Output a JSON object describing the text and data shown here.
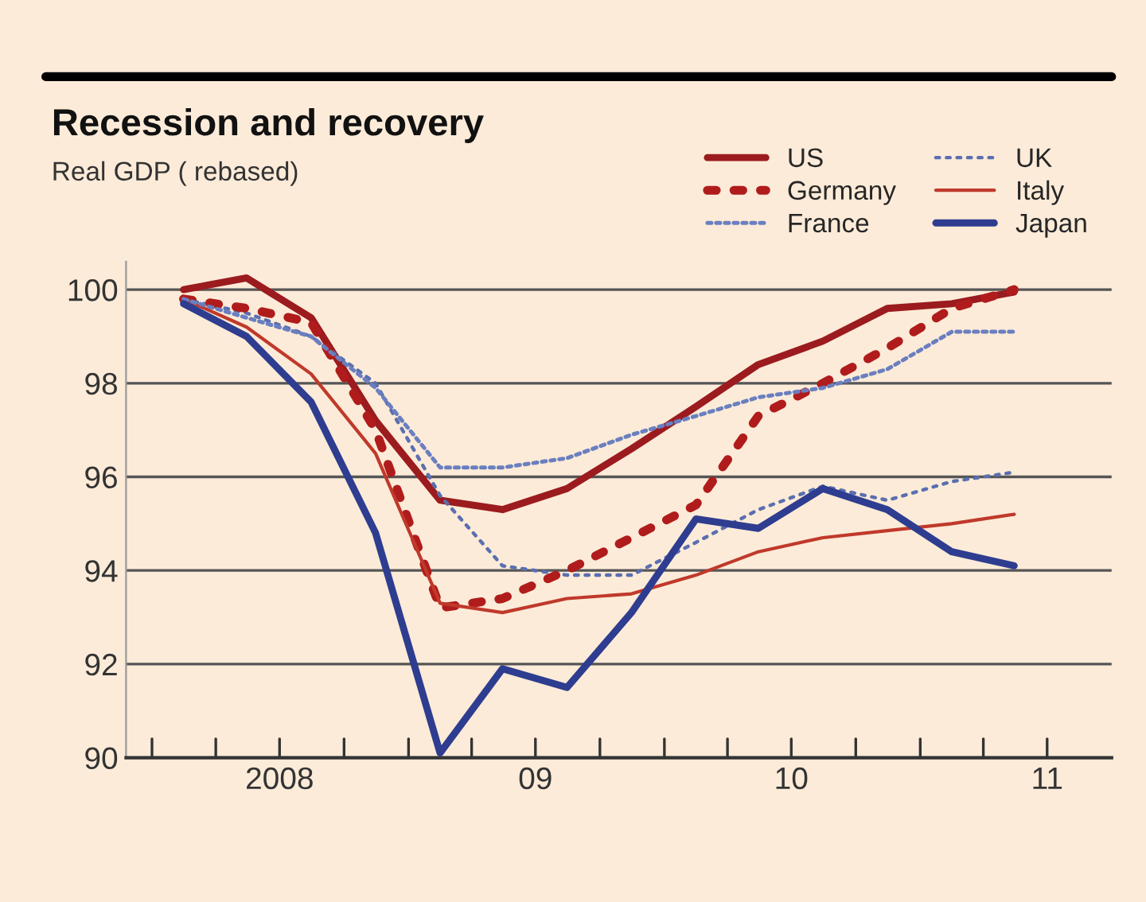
{
  "chart_data": {
    "type": "line",
    "title": "Recession and recovery",
    "subtitle": "Real GDP ( rebased)",
    "x": [
      "2008-02-15",
      "2008-05-15",
      "2008-08-15",
      "2008-11-15",
      "2009-02-15",
      "2009-05-15",
      "2009-08-15",
      "2009-11-15",
      "2010-02-15",
      "2010-05-15",
      "2010-08-15",
      "2010-11-15",
      "2011-02-15",
      "2011-05-15"
    ],
    "series": [
      {
        "name": "US",
        "color": "#9b1b1f",
        "line_style": "solid",
        "values": [
          100.0,
          100.25,
          99.4,
          97.2,
          95.5,
          95.3,
          95.75,
          96.6,
          97.5,
          98.4,
          98.9,
          99.6,
          99.7,
          99.95
        ]
      },
      {
        "name": "UK",
        "color": "#5a6fb0",
        "line_style": "dotted",
        "values": [
          99.8,
          99.5,
          99.0,
          98.0,
          95.6,
          94.1,
          93.9,
          93.9,
          94.6,
          95.3,
          95.8,
          95.5,
          95.9,
          96.1
        ]
      },
      {
        "name": "Germany",
        "color": "#b01c1c",
        "line_style": "dotted",
        "values": [
          99.8,
          99.6,
          99.3,
          97.0,
          93.2,
          93.4,
          94.0,
          94.7,
          95.4,
          97.3,
          98.0,
          98.75,
          99.6,
          100.0
        ]
      },
      {
        "name": "Italy",
        "color": "#c0392b",
        "line_style": "solid",
        "values": [
          99.8,
          99.2,
          98.2,
          96.5,
          93.3,
          93.1,
          93.4,
          93.5,
          93.9,
          94.4,
          94.7,
          94.85,
          95.0,
          95.2
        ]
      },
      {
        "name": "France",
        "color": "#6a7fc0",
        "line_style": "dashed",
        "values": [
          99.8,
          99.4,
          99.0,
          97.9,
          96.2,
          96.2,
          96.4,
          96.9,
          97.3,
          97.7,
          97.9,
          98.3,
          99.1,
          99.1
        ]
      },
      {
        "name": "Japan",
        "color": "#2e3d8f",
        "line_style": "solid",
        "values": [
          99.7,
          99.0,
          97.6,
          94.8,
          90.1,
          91.9,
          91.5,
          93.1,
          95.1,
          94.9,
          95.75,
          95.3,
          94.4,
          94.1
        ]
      }
    ],
    "xlim": [
      "2007-11-25",
      "2011-10-01"
    ],
    "xticks": [
      {
        "value": "2008-01-01",
        "label": null
      },
      {
        "value": "2008-04-01",
        "label": null
      },
      {
        "value": "2008-07-01",
        "label": "2008"
      },
      {
        "value": "2008-10-01",
        "label": null
      },
      {
        "value": "2009-01-01",
        "label": null
      },
      {
        "value": "2009-04-01",
        "label": null
      },
      {
        "value": "2009-07-01",
        "label": "09"
      },
      {
        "value": "2009-10-01",
        "label": null
      },
      {
        "value": "2010-01-01",
        "label": null
      },
      {
        "value": "2010-04-01",
        "label": null
      },
      {
        "value": "2010-07-01",
        "label": "10"
      },
      {
        "value": "2010-10-01",
        "label": null
      },
      {
        "value": "2011-01-01",
        "label": null
      },
      {
        "value": "2011-04-01",
        "label": null
      },
      {
        "value": "2011-07-01",
        "label": "11"
      }
    ],
    "ylim": [
      90,
      100.6
    ],
    "yticks": [
      90,
      92,
      94,
      96,
      98,
      100
    ],
    "grid": "y",
    "legend": "top right"
  }
}
